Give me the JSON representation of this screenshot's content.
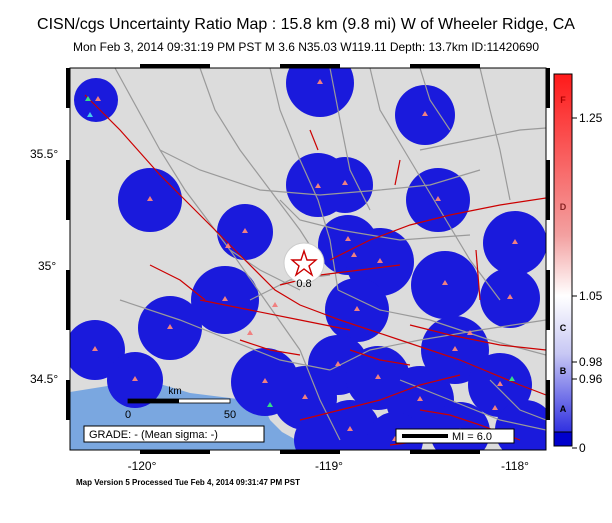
{
  "title": "CISN/cgs Uncertainty Ratio Map : 15.8 km (9.8 mi) W of Wheeler Ridge, CA",
  "subtitle": "Mon Feb  3, 2014 09:31:19 PM PST   M 3.6   N35.03 W119.11   Depth: 13.7km   ID:11420690",
  "footer": "Map Version 5 Processed Tue Feb  4, 2014 09:31:47 PM PST",
  "epicenter_label": "0.8",
  "grade_label": "GRADE: - (Mean sigma: -)",
  "scale": {
    "label": "km",
    "start": "0",
    "end": "50"
  },
  "mi_legend": "MI = 6.0",
  "axes": {
    "lat_ticks": [
      "35.5°",
      "35°",
      "34.5°"
    ],
    "lon_ticks": [
      "-120°",
      "-119°",
      "-118°"
    ]
  },
  "colorbar": {
    "letters": [
      "F",
      "D",
      "C",
      "B",
      "A"
    ],
    "values": [
      "1.25",
      "1.05",
      "0.98",
      "0.96",
      "0"
    ]
  },
  "colors": {
    "map_bg": "#dcdcdc",
    "uncertainty_blob": "#1a1adc",
    "ocean": "#7aa7e0",
    "fault": "#cc0000",
    "road": "#9a9a9a",
    "station": "#f08080"
  }
}
